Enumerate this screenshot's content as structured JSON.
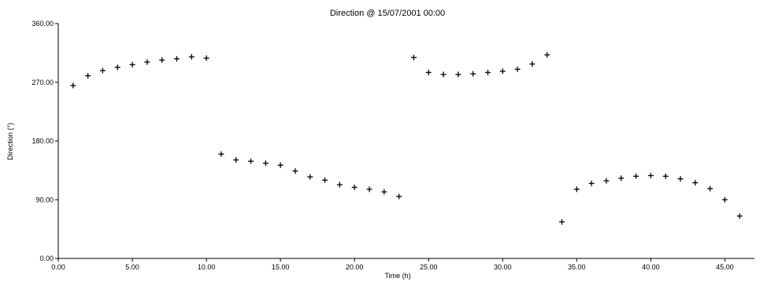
{
  "chart_data": {
    "type": "scatter",
    "title": "Direction @ 15/07/2001 00:00",
    "xlabel": "Time (h)",
    "ylabel": "Direction (°)",
    "xlim": [
      0,
      47
    ],
    "ylim": [
      0,
      360
    ],
    "x_ticks": [
      "0.00",
      "5.00",
      "10.00",
      "15.00",
      "20.00",
      "25.00",
      "30.00",
      "35.00",
      "40.00",
      "45.00"
    ],
    "y_ticks": [
      "0.00",
      "90.00",
      "180.00",
      "270.00",
      "360.00"
    ],
    "grid": false,
    "marker": "+",
    "series": [
      {
        "x": [
          1,
          2,
          3,
          4,
          5,
          6,
          7,
          8,
          9,
          10,
          11,
          12,
          13,
          14,
          15,
          16,
          17,
          18,
          19,
          20,
          21,
          22,
          23,
          24,
          25,
          26,
          27,
          28,
          29,
          30,
          31,
          32,
          33,
          34,
          35,
          36,
          37,
          38,
          39,
          40,
          41,
          42,
          43,
          44,
          45,
          46
        ],
        "y": [
          265,
          280,
          288,
          293,
          297,
          301,
          304,
          306,
          309,
          307,
          160,
          151,
          149,
          146,
          143,
          134,
          125,
          120,
          113,
          109,
          106,
          102,
          95,
          308,
          285,
          282,
          282,
          283,
          285,
          287,
          290,
          298,
          312,
          56,
          106,
          115,
          119,
          123,
          126,
          127,
          126,
          122,
          116,
          107,
          90,
          65
        ]
      }
    ]
  }
}
